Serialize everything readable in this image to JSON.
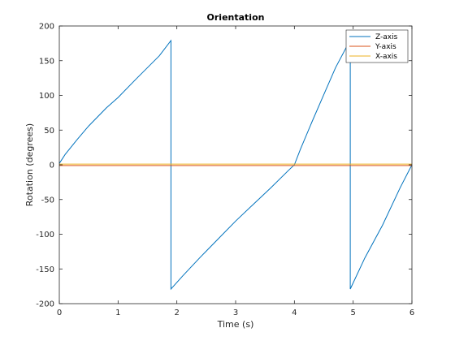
{
  "chart_data": {
    "type": "line",
    "title": "Orientation",
    "xlabel": "Time (s)",
    "ylabel": "Rotation (degrees)",
    "xlim": [
      0,
      6
    ],
    "ylim": [
      -200,
      200
    ],
    "xticks": [
      0,
      1,
      2,
      3,
      4,
      5,
      6
    ],
    "yticks": [
      -200,
      -150,
      -100,
      -50,
      0,
      50,
      100,
      150,
      200
    ],
    "grid": false,
    "legend_position": "top-right",
    "series": [
      {
        "name": "Z-axis",
        "color": "#0072BD",
        "x": [
          0,
          0.1,
          0.3,
          0.5,
          0.8,
          1.0,
          1.3,
          1.5,
          1.7,
          1.9,
          1.9,
          2.1,
          2.4,
          2.7,
          3.0,
          3.3,
          3.6,
          3.9,
          4.0,
          4.1,
          4.3,
          4.5,
          4.7,
          4.95,
          4.95,
          5.2,
          5.5,
          5.8,
          6.0
        ],
        "y": [
          2,
          15,
          36,
          56,
          82,
          97,
          123,
          140,
          157,
          179,
          -179,
          -160,
          -133,
          -107,
          -81,
          -57,
          -33,
          -8,
          0,
          22,
          62,
          101,
          140,
          180,
          -179,
          -134,
          -87,
          -33,
          0
        ]
      },
      {
        "name": "Y-axis",
        "color": "#D95319",
        "x": [
          0,
          6
        ],
        "y": [
          -1,
          -1
        ]
      },
      {
        "name": "X-axis",
        "color": "#EDB120",
        "x": [
          0,
          6
        ],
        "y": [
          1,
          1
        ]
      }
    ]
  }
}
